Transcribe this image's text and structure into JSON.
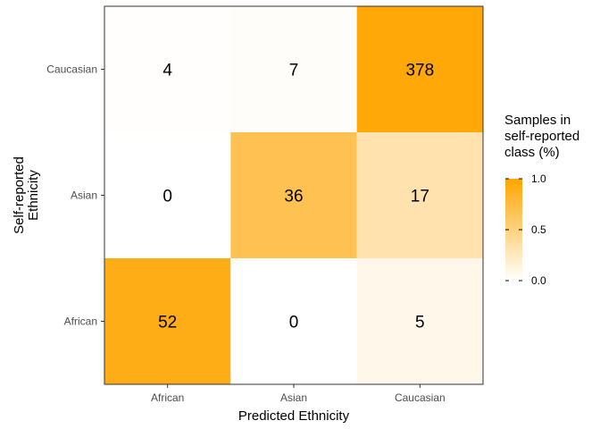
{
  "chart_data": {
    "type": "heatmap",
    "xlabel": "Predicted Ethnicity",
    "ylabel_lines": [
      "Self-reported",
      "Ethnicity"
    ],
    "x_categories": [
      "African",
      "Asian",
      "Caucasian"
    ],
    "y_categories": [
      "African",
      "Asian",
      "Caucasian"
    ],
    "cells": [
      {
        "x": "African",
        "y": "African",
        "count": 52,
        "fraction": 0.912
      },
      {
        "x": "Asian",
        "y": "African",
        "count": 0,
        "fraction": 0.0
      },
      {
        "x": "Caucasian",
        "y": "African",
        "count": 5,
        "fraction": 0.088
      },
      {
        "x": "African",
        "y": "Asian",
        "count": 0,
        "fraction": 0.0
      },
      {
        "x": "Asian",
        "y": "Asian",
        "count": 36,
        "fraction": 0.679
      },
      {
        "x": "Caucasian",
        "y": "Asian",
        "count": 17,
        "fraction": 0.321
      },
      {
        "x": "African",
        "y": "Caucasian",
        "count": 4,
        "fraction": 0.01
      },
      {
        "x": "Asian",
        "y": "Caucasian",
        "count": 7,
        "fraction": 0.018
      },
      {
        "x": "Caucasian",
        "y": "Caucasian",
        "count": 378,
        "fraction": 0.972
      }
    ],
    "legend": {
      "title_lines": [
        "Samples in",
        "self-reported",
        "class (%)"
      ],
      "ticks": [
        {
          "value": 0.0,
          "label": "0.0"
        },
        {
          "value": 0.5,
          "label": "0.5"
        },
        {
          "value": 1.0,
          "label": "1.0"
        }
      ],
      "range": [
        0,
        1
      ],
      "placement": "right"
    },
    "colors": {
      "low": "#ffffff",
      "high": "#ffa500",
      "panel_border": "#333333",
      "tick_label": "#4d4d4d"
    }
  }
}
